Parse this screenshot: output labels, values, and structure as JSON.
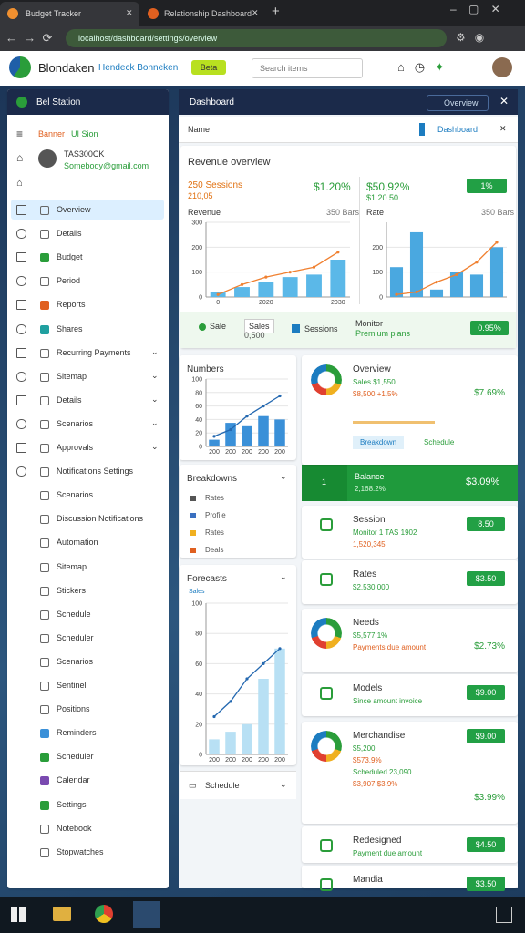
{
  "browser": {
    "tabs": [
      "Budget Tracker",
      "Relationship Dashboard"
    ],
    "url": "localhost/dashboard/settings/overview"
  },
  "header": {
    "brand": "Blondaken",
    "subtitle": "Hendeck Bonneken",
    "badge": "Beta",
    "search": "Search items"
  },
  "sidebar": {
    "title": "Bel Station",
    "section": [
      "Banner",
      "UI Sion"
    ],
    "user": {
      "name": "TAS300CK",
      "email": "Somebody@gmail.com"
    },
    "items": [
      "Overview",
      "Details",
      "Budget",
      "Period",
      "Reports",
      "Shares",
      "Recurring Payments",
      "Sitemap",
      "Details",
      "Scenarios",
      "Approvals",
      "Notifications Settings",
      "Scenarios",
      "Discussion Notifications",
      "Automation",
      "Sitemap",
      "Stickers",
      "Schedule",
      "Scheduler",
      "Scenarios",
      "Sentinel",
      "Positions",
      "Reminders",
      "Scheduler",
      "Calendar",
      "Settings",
      "Notebook",
      "Stopwatches"
    ]
  },
  "main": {
    "title": "Dashboard",
    "select": "Overview",
    "bar_label": "Name",
    "bar_button": "Dashboard",
    "revenue": {
      "title": "Revenue overview",
      "left": {
        "label": "250 Sessions",
        "value": "$1.20%",
        "sub": "210,05",
        "axis": "Revenue",
        "note": "350 Bars"
      },
      "right": {
        "value": "$50,92%",
        "sub": "$1.20.50",
        "button": "1%",
        "axis": "Rate",
        "note": "350 Bars"
      },
      "legend_extra": {
        "dropdown": "0,500",
        "box": "Sessions",
        "monitor": "Monitor",
        "monitor_sub": "Premium plans",
        "button": "0.95%"
      }
    },
    "breakdowns": {
      "title": "Breakdowns",
      "items": [
        "Rates",
        "Profile",
        "Rates",
        "Deals"
      ]
    },
    "footer": "Schedule"
  },
  "cards": [
    {
      "title": "Overview",
      "lines": [
        "Sales $1,550",
        "$8,500 +1.5%"
      ],
      "value": "$7.69%",
      "tabs": [
        "Breakdown",
        "Schedule"
      ]
    },
    {
      "title": "Session",
      "lines": [
        "Monitor 1 TAS 1902",
        "1,520,345"
      ],
      "button": "8.50"
    },
    {
      "title": "Rates",
      "lines": [
        "$2,530,000"
      ],
      "button": "$3.50"
    },
    {
      "title": "Needs",
      "lines": [
        "$5,577.1%",
        "Payments due amount"
      ],
      "value": "$2.73%"
    },
    {
      "title": "Models",
      "lines": [
        "Since amount invoice"
      ],
      "button": "$9.00"
    },
    {
      "title": "Merchandise",
      "lines": [
        "$5,200",
        "$573.9%",
        "Scheduled 23,090",
        "$3,907 $3.9%"
      ],
      "button": "$9.00",
      "value": "$3.99%"
    },
    {
      "title": "Redesigned",
      "lines": [
        "Payment due amount"
      ],
      "button": "$4.50"
    },
    {
      "title": "Mandia",
      "button": "$3.50"
    }
  ],
  "balance": {
    "num": "1",
    "title": "Balance",
    "sub": "2,168.2%",
    "value": "$3.09%"
  },
  "chart_data": [
    {
      "type": "bar",
      "ylim": [
        0,
        300
      ],
      "yticks": [
        0,
        100,
        200,
        300
      ],
      "categories": [
        "0",
        null,
        "2020",
        null,
        null,
        "2030"
      ],
      "series": [
        {
          "name": "Sales",
          "color": "#5bb8e8",
          "values": [
            20,
            40,
            60,
            80,
            90,
            150
          ]
        },
        {
          "name": "Sale",
          "type": "line",
          "color": "#f08030",
          "values": [
            10,
            50,
            80,
            100,
            120,
            180
          ]
        }
      ]
    },
    {
      "type": "bar",
      "ylim": [
        0,
        300
      ],
      "yticks": [
        0,
        100,
        200
      ],
      "categories": [
        null,
        null,
        null,
        null,
        null,
        null
      ],
      "series": [
        {
          "color": "#4aa8e0",
          "values": [
            120,
            260,
            30,
            100,
            90,
            200
          ]
        },
        {
          "type": "line",
          "color": "#f08030",
          "values": [
            10,
            20,
            60,
            90,
            140,
            220
          ]
        }
      ]
    },
    {
      "type": "bar",
      "title": "Numbers",
      "ylim": [
        0,
        100
      ],
      "yticks": [
        0,
        20,
        40,
        60,
        80,
        100
      ],
      "categories": [
        "200",
        "200",
        "200",
        "200",
        "200"
      ],
      "series": [
        {
          "color": "#3a90d8",
          "values": [
            10,
            35,
            30,
            45,
            40
          ]
        },
        {
          "type": "line",
          "color": "#2468b0",
          "values": [
            15,
            25,
            45,
            60,
            75
          ]
        }
      ]
    },
    {
      "type": "bar",
      "title": "Forecasts",
      "subtitle": "Sales",
      "ylim": [
        0,
        100
      ],
      "yticks": [
        0,
        20,
        40,
        60,
        80,
        100
      ],
      "categories": [
        "200",
        "200",
        "200",
        "200",
        "200"
      ],
      "series": [
        {
          "color": "#b8e0f4",
          "values": [
            10,
            15,
            20,
            50,
            70
          ]
        },
        {
          "type": "line",
          "color": "#2468b0",
          "values": [
            25,
            35,
            50,
            60,
            70
          ]
        }
      ]
    }
  ]
}
